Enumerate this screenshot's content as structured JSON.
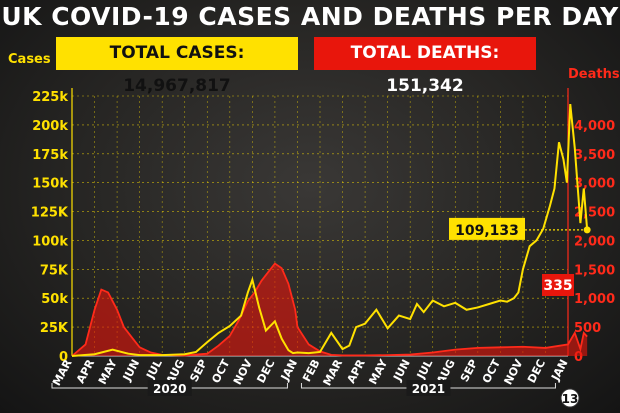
{
  "header": {
    "title": "UK COVID-19 CASES AND DEATHS PER DAY",
    "total_cases_label": "TOTAL CASES: 14,967,817",
    "total_deaths_label": "TOTAL DEATHS: 151,342"
  },
  "colors": {
    "cases": "#ffe100",
    "deaths": "#e8160c",
    "background": "#1a1a1a",
    "grid": "#ffe100"
  },
  "chart_data": {
    "type": "line",
    "title": "UK COVID-19 CASES AND DEATHS PER DAY",
    "y_left": {
      "label": "Cases",
      "ylim": [
        0,
        225000
      ],
      "ticks": [
        "0",
        "25K",
        "50k",
        "75K",
        "100k",
        "125K",
        "150k",
        "175k",
        "200k",
        "225k"
      ]
    },
    "y_right": {
      "label": "Deaths",
      "ylim": [
        0,
        4500
      ],
      "ticks": [
        "0",
        "500",
        "1,000",
        "1,500",
        "2,000",
        "2,500",
        "3,000",
        "3,500",
        "4,000"
      ]
    },
    "x_month_labels": [
      "MAR",
      "APR",
      "MAY",
      "JUN",
      "JUL",
      "AUG",
      "SEP",
      "OCT",
      "NOV",
      "DEC",
      "JAN",
      "FEB",
      "MAR",
      "APR",
      "MAY",
      "JUN",
      "JUL",
      "AUG",
      "SEP",
      "OCT",
      "NOV",
      "DEC",
      "JAN"
    ],
    "year_labels": [
      "2020",
      "2021"
    ],
    "end_date_label": "13",
    "grid": true,
    "series": [
      {
        "name": "Cases",
        "axis": "left",
        "x": [
          0,
          1,
          1.8,
          2.5,
          3,
          4,
          5,
          5.5,
          6,
          6.5,
          7,
          7.5,
          7.8,
          8,
          8.3,
          8.6,
          9,
          9.3,
          9.6,
          9.8,
          10,
          10.5,
          11,
          11.5,
          12,
          12.3,
          12.6,
          13,
          13.5,
          14,
          14.5,
          15,
          15.3,
          15.6,
          16,
          16.5,
          17,
          17.5,
          18,
          18.5,
          19,
          19.3,
          19.6,
          19.8,
          20,
          20.3,
          20.6,
          20.9,
          21.2,
          21.4,
          21.6,
          21.8,
          21.95,
          22.1,
          22.3,
          22.55,
          22.7,
          22.85
        ],
        "values": [
          0,
          1500,
          5500,
          2000,
          800,
          800,
          1500,
          3500,
          12000,
          20000,
          26000,
          35000,
          55000,
          66000,
          42000,
          22000,
          30000,
          15000,
          5000,
          2500,
          3000,
          2500,
          3500,
          20000,
          6000,
          9000,
          25000,
          28000,
          40000,
          24000,
          35000,
          32000,
          45000,
          38000,
          48000,
          43000,
          46000,
          40000,
          42000,
          45000,
          48000,
          47000,
          50000,
          55000,
          75000,
          95000,
          100000,
          110000,
          130000,
          145000,
          185000,
          170000,
          150000,
          218000,
          180000,
          115000,
          145000,
          109133
        ]
      },
      {
        "name": "Deaths",
        "axis": "right",
        "x": [
          0,
          0.6,
          1,
          1.3,
          1.6,
          2,
          2.3,
          2.7,
          3,
          3.5,
          4,
          5,
          6,
          6.5,
          7,
          7.4,
          7.8,
          8.1,
          8.4,
          8.7,
          9,
          9.3,
          9.6,
          9.9,
          10,
          10.5,
          11,
          11.5,
          12,
          13,
          14,
          15,
          16,
          17,
          18,
          19,
          20,
          21,
          22,
          22.3,
          22.55,
          22.7,
          22.85
        ],
        "values": [
          0,
          200,
          800,
          1150,
          1100,
          800,
          500,
          300,
          150,
          60,
          20,
          10,
          40,
          180,
          350,
          620,
          950,
          1100,
          1300,
          1450,
          1600,
          1520,
          1250,
          800,
          500,
          200,
          80,
          20,
          10,
          10,
          15,
          25,
          60,
          110,
          140,
          150,
          160,
          140,
          200,
          400,
          120,
          400,
          335
        ]
      }
    ],
    "annotations": [
      {
        "text": "109,133",
        "series": "Cases",
        "x": 22.85,
        "y": 109133
      },
      {
        "text": "335",
        "series": "Deaths",
        "x": 22.85,
        "y": 335
      }
    ]
  }
}
